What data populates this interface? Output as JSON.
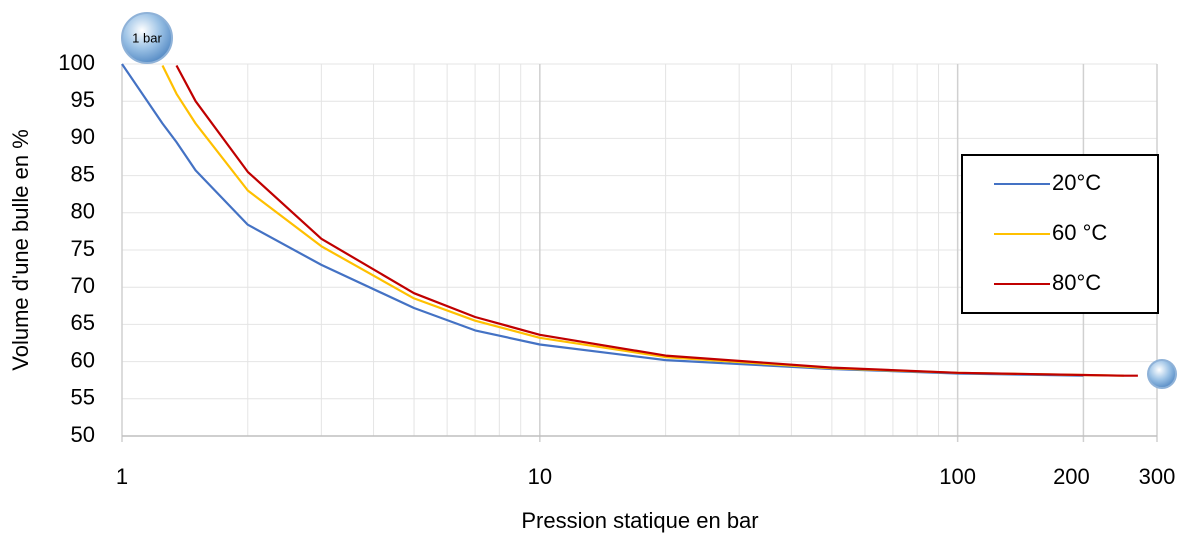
{
  "chart_data": {
    "type": "line",
    "x_label": "Pression statique en bar",
    "y_label": "Volume d'une bulle en %",
    "annotation": "1 bar",
    "x_scale": "log",
    "x": [
      1,
      1.25,
      1.35,
      1.5,
      2,
      3,
      5,
      7,
      10,
      20,
      50,
      100,
      200,
      250,
      270
    ],
    "series": [
      {
        "name": "20°C",
        "color": "#4472c4",
        "values": [
          100,
          92,
          89.5,
          85.7,
          78.4,
          73,
          67.2,
          64.2,
          62.3,
          60.2,
          59,
          58.4,
          58.1,
          null,
          null
        ]
      },
      {
        "name": "60 °C",
        "color": "#ffc000",
        "values": [
          null,
          99.8,
          96,
          92,
          83,
          75.5,
          68.5,
          65.5,
          63.2,
          60.6,
          59.1,
          58.5,
          58.2,
          58.1,
          null
        ]
      },
      {
        "name": "80°C",
        "color": "#c00000",
        "values": [
          null,
          null,
          99.8,
          95,
          85.5,
          76.5,
          69.2,
          66,
          63.6,
          60.8,
          59.2,
          58.5,
          58.2,
          58.1,
          58.1
        ]
      }
    ],
    "xlim": [
      1,
      300
    ],
    "xticks": [
      1,
      10,
      100,
      200,
      300
    ],
    "x_minor_grid": [
      2,
      3,
      4,
      5,
      6,
      7,
      8,
      9,
      20,
      30,
      40,
      50,
      60,
      70,
      80,
      90
    ],
    "ylim": [
      50,
      100
    ],
    "yticks": [
      50,
      55,
      60,
      65,
      70,
      75,
      80,
      85,
      90,
      95,
      100
    ],
    "grid": true,
    "legend": "right"
  }
}
